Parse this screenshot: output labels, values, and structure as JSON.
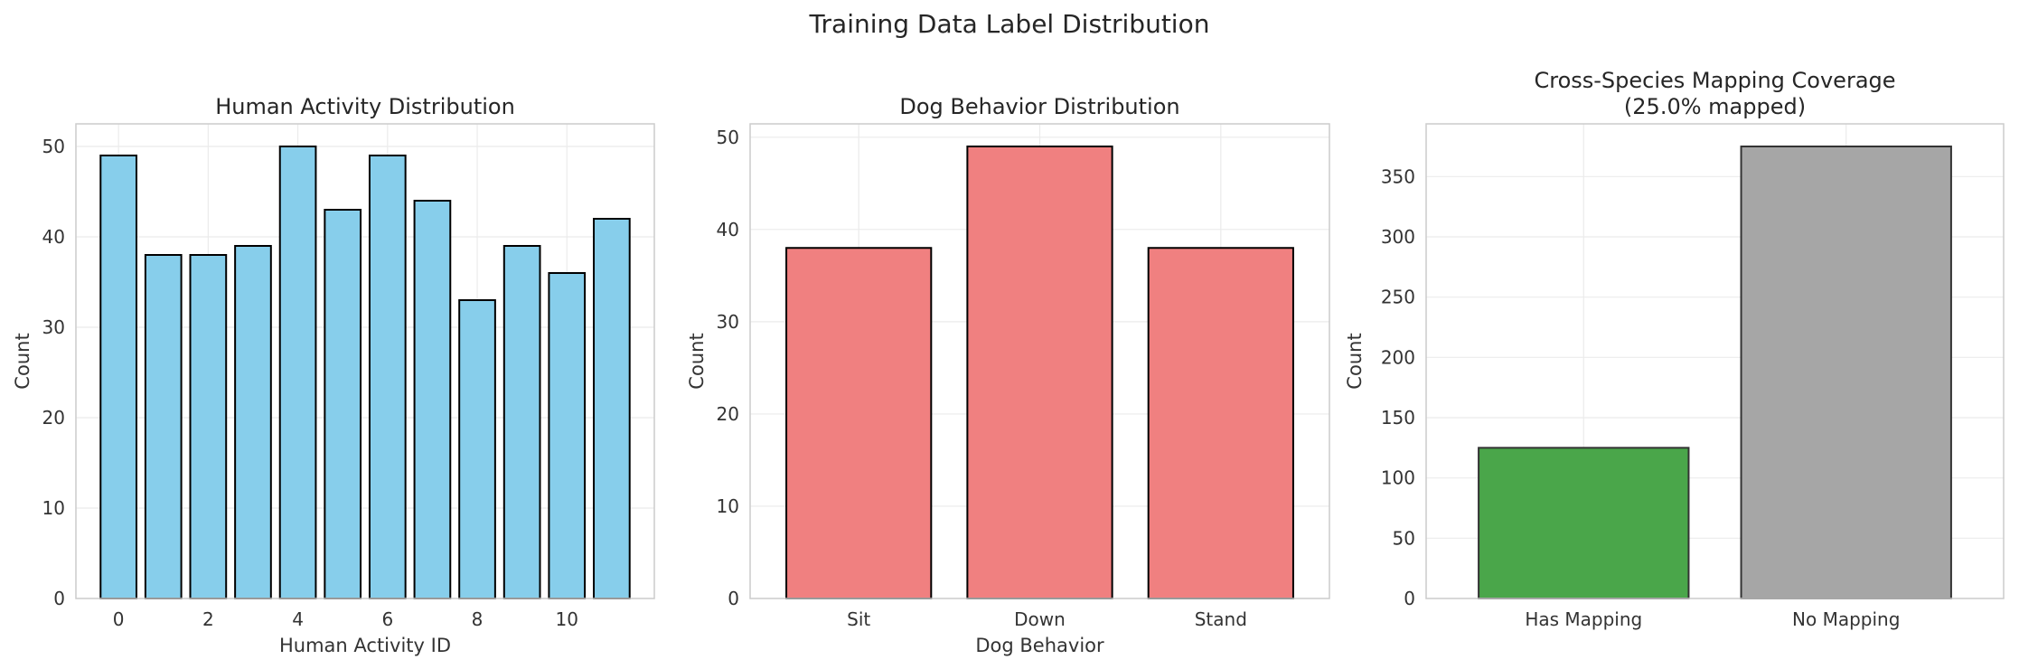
{
  "figure_title": "Training Data Label Distribution",
  "chart_data": [
    {
      "type": "bar",
      "title": "Human Activity Distribution",
      "xlabel": "Human Activity ID",
      "ylabel": "Count",
      "categories": [
        0,
        1,
        2,
        3,
        4,
        5,
        6,
        7,
        8,
        9,
        10,
        11
      ],
      "values": [
        49,
        38,
        38,
        39,
        50,
        43,
        49,
        44,
        33,
        39,
        36,
        42
      ],
      "xticks": [
        0,
        2,
        4,
        6,
        8,
        10
      ],
      "yticks": [
        0,
        10,
        20,
        30,
        40,
        50
      ],
      "xlim": [
        -0.95,
        11.95
      ],
      "ylim": [
        0,
        52.5
      ],
      "bar_color": "#87ceeb",
      "edge_color": "#000000",
      "grid": true
    },
    {
      "type": "bar",
      "title": "Dog Behavior Distribution",
      "xlabel": "Dog Behavior",
      "ylabel": "Count",
      "categories": [
        "Sit",
        "Down",
        "Stand"
      ],
      "values": [
        38,
        49,
        38
      ],
      "yticks": [
        0,
        10,
        20,
        30,
        40,
        50
      ],
      "xlim": [
        -0.6,
        2.6
      ],
      "ylim": [
        0,
        51.45
      ],
      "bar_color": "#f08080",
      "edge_color": "#000000",
      "grid": true
    },
    {
      "type": "bar",
      "title": "Cross-Species Mapping Coverage",
      "subtitle": "(25.0% mapped)",
      "xlabel": "",
      "ylabel": "Count",
      "categories": [
        "Has Mapping",
        "No Mapping"
      ],
      "values": [
        125,
        375
      ],
      "yticks": [
        0,
        50,
        100,
        150,
        200,
        250,
        300,
        350
      ],
      "xlim": [
        -0.6,
        1.6
      ],
      "ylim": [
        0,
        393.75
      ],
      "bar_colors": [
        "#4aa64a",
        "#a6a6a6"
      ],
      "edge_color": "#333333",
      "grid": true
    }
  ]
}
